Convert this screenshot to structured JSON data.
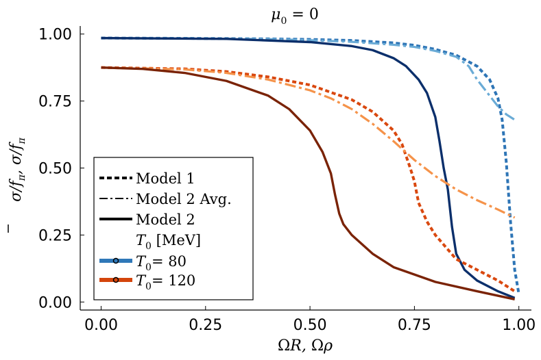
{
  "chart_data": {
    "type": "line",
    "title": "μ_0 = 0",
    "title_parts": {
      "sym": "μ",
      "sub": "0",
      "rest": " = 0"
    },
    "xlabel": "ΩR, Ωρ",
    "ylabel": "σ̄/f_π, σ/f_π",
    "ylabel_parts": {
      "a": "σ",
      "f1": "f",
      "pi1": "π",
      "b": "σ",
      "f2": "f",
      "pi2": "π"
    },
    "xlim": [
      -0.05,
      1.03
    ],
    "ylim": [
      -0.03,
      1.03
    ],
    "xticks": [
      0.0,
      0.25,
      0.5,
      0.75,
      1.0
    ],
    "yticks": [
      0.0,
      0.25,
      0.5,
      0.75,
      1.0
    ],
    "xtick_labels": [
      "0.00",
      "0.25",
      "0.50",
      "0.75",
      "1.00"
    ],
    "ytick_labels": [
      "0.00",
      "0.25",
      "0.50",
      "0.75",
      "1.00"
    ],
    "grid": false,
    "legend": {
      "placement": "bottom-left",
      "entries": [
        {
          "label": "Model 1",
          "style": "dash"
        },
        {
          "label": "Model 2 Avg.",
          "style": "dashdot"
        },
        {
          "label": "Model 2",
          "style": "solid"
        }
      ],
      "temp_title": "T_0 [MeV]",
      "temp_title_parts": {
        "t": "T",
        "sub": "0",
        "unit": "[MeV]"
      },
      "temps": [
        {
          "t": "T",
          "sub": "0",
          "value": "= 80",
          "color": "#2f78b8"
        },
        {
          "t": "T",
          "sub": "0",
          "value": "= 120",
          "color": "#d4450c"
        }
      ]
    },
    "series": [
      {
        "name": "Model 1, T_0 = 80",
        "style": "dash",
        "color": "#2e75b6",
        "x": [
          0.0,
          0.2,
          0.4,
          0.5,
          0.6,
          0.7,
          0.75,
          0.8,
          0.85,
          0.9,
          0.93,
          0.95,
          0.96,
          0.97,
          0.98,
          0.99,
          1.0
        ],
        "y": [
          0.985,
          0.984,
          0.982,
          0.98,
          0.976,
          0.967,
          0.958,
          0.943,
          0.921,
          0.88,
          0.83,
          0.76,
          0.68,
          0.52,
          0.3,
          0.12,
          0.03
        ]
      },
      {
        "name": "Model 2 Avg., T_0 = 80",
        "style": "dashdot",
        "color": "#6aabd6",
        "x": [
          0.0,
          0.2,
          0.4,
          0.5,
          0.6,
          0.7,
          0.75,
          0.8,
          0.85,
          0.88,
          0.9,
          0.93,
          0.95,
          0.97,
          0.99
        ],
        "y": [
          0.985,
          0.984,
          0.981,
          0.977,
          0.971,
          0.96,
          0.952,
          0.937,
          0.915,
          0.88,
          0.83,
          0.77,
          0.73,
          0.7,
          0.68
        ]
      },
      {
        "name": "Model 2, T_0 = 80",
        "style": "solid",
        "color": "#0b2f6b",
        "x": [
          0.0,
          0.3,
          0.5,
          0.6,
          0.65,
          0.7,
          0.73,
          0.76,
          0.78,
          0.8,
          0.81,
          0.82,
          0.83,
          0.84,
          0.85,
          0.87,
          0.9,
          0.95,
          0.99
        ],
        "y": [
          0.985,
          0.982,
          0.97,
          0.955,
          0.94,
          0.91,
          0.88,
          0.83,
          0.78,
          0.69,
          0.6,
          0.5,
          0.42,
          0.28,
          0.18,
          0.12,
          0.08,
          0.04,
          0.015
        ]
      },
      {
        "name": "Model 1, T_0 = 120",
        "style": "dash",
        "color": "#d9480f",
        "x": [
          0.0,
          0.2,
          0.3,
          0.4,
          0.5,
          0.6,
          0.65,
          0.7,
          0.72,
          0.74,
          0.75,
          0.76,
          0.78,
          0.8,
          0.85,
          0.9,
          0.95,
          0.99
        ],
        "y": [
          0.875,
          0.87,
          0.86,
          0.84,
          0.81,
          0.755,
          0.71,
          0.64,
          0.59,
          0.5,
          0.45,
          0.37,
          0.3,
          0.25,
          0.16,
          0.12,
          0.08,
          0.04
        ]
      },
      {
        "name": "Model 2 Avg., T_0 = 120",
        "style": "dashdot",
        "color": "#f5934a",
        "x": [
          0.0,
          0.2,
          0.3,
          0.4,
          0.5,
          0.55,
          0.6,
          0.65,
          0.7,
          0.75,
          0.8,
          0.85,
          0.9,
          0.95,
          0.99
        ],
        "y": [
          0.875,
          0.868,
          0.855,
          0.83,
          0.79,
          0.76,
          0.72,
          0.665,
          0.6,
          0.53,
          0.47,
          0.42,
          0.38,
          0.345,
          0.315
        ]
      },
      {
        "name": "Model 2, T_0 = 120",
        "style": "solid",
        "color": "#7a2306",
        "x": [
          0.0,
          0.1,
          0.2,
          0.3,
          0.4,
          0.45,
          0.5,
          0.53,
          0.55,
          0.56,
          0.57,
          0.58,
          0.6,
          0.65,
          0.7,
          0.8,
          0.9,
          0.99
        ],
        "y": [
          0.875,
          0.87,
          0.855,
          0.825,
          0.77,
          0.72,
          0.64,
          0.56,
          0.48,
          0.4,
          0.33,
          0.29,
          0.25,
          0.18,
          0.13,
          0.075,
          0.04,
          0.01
        ]
      }
    ]
  }
}
